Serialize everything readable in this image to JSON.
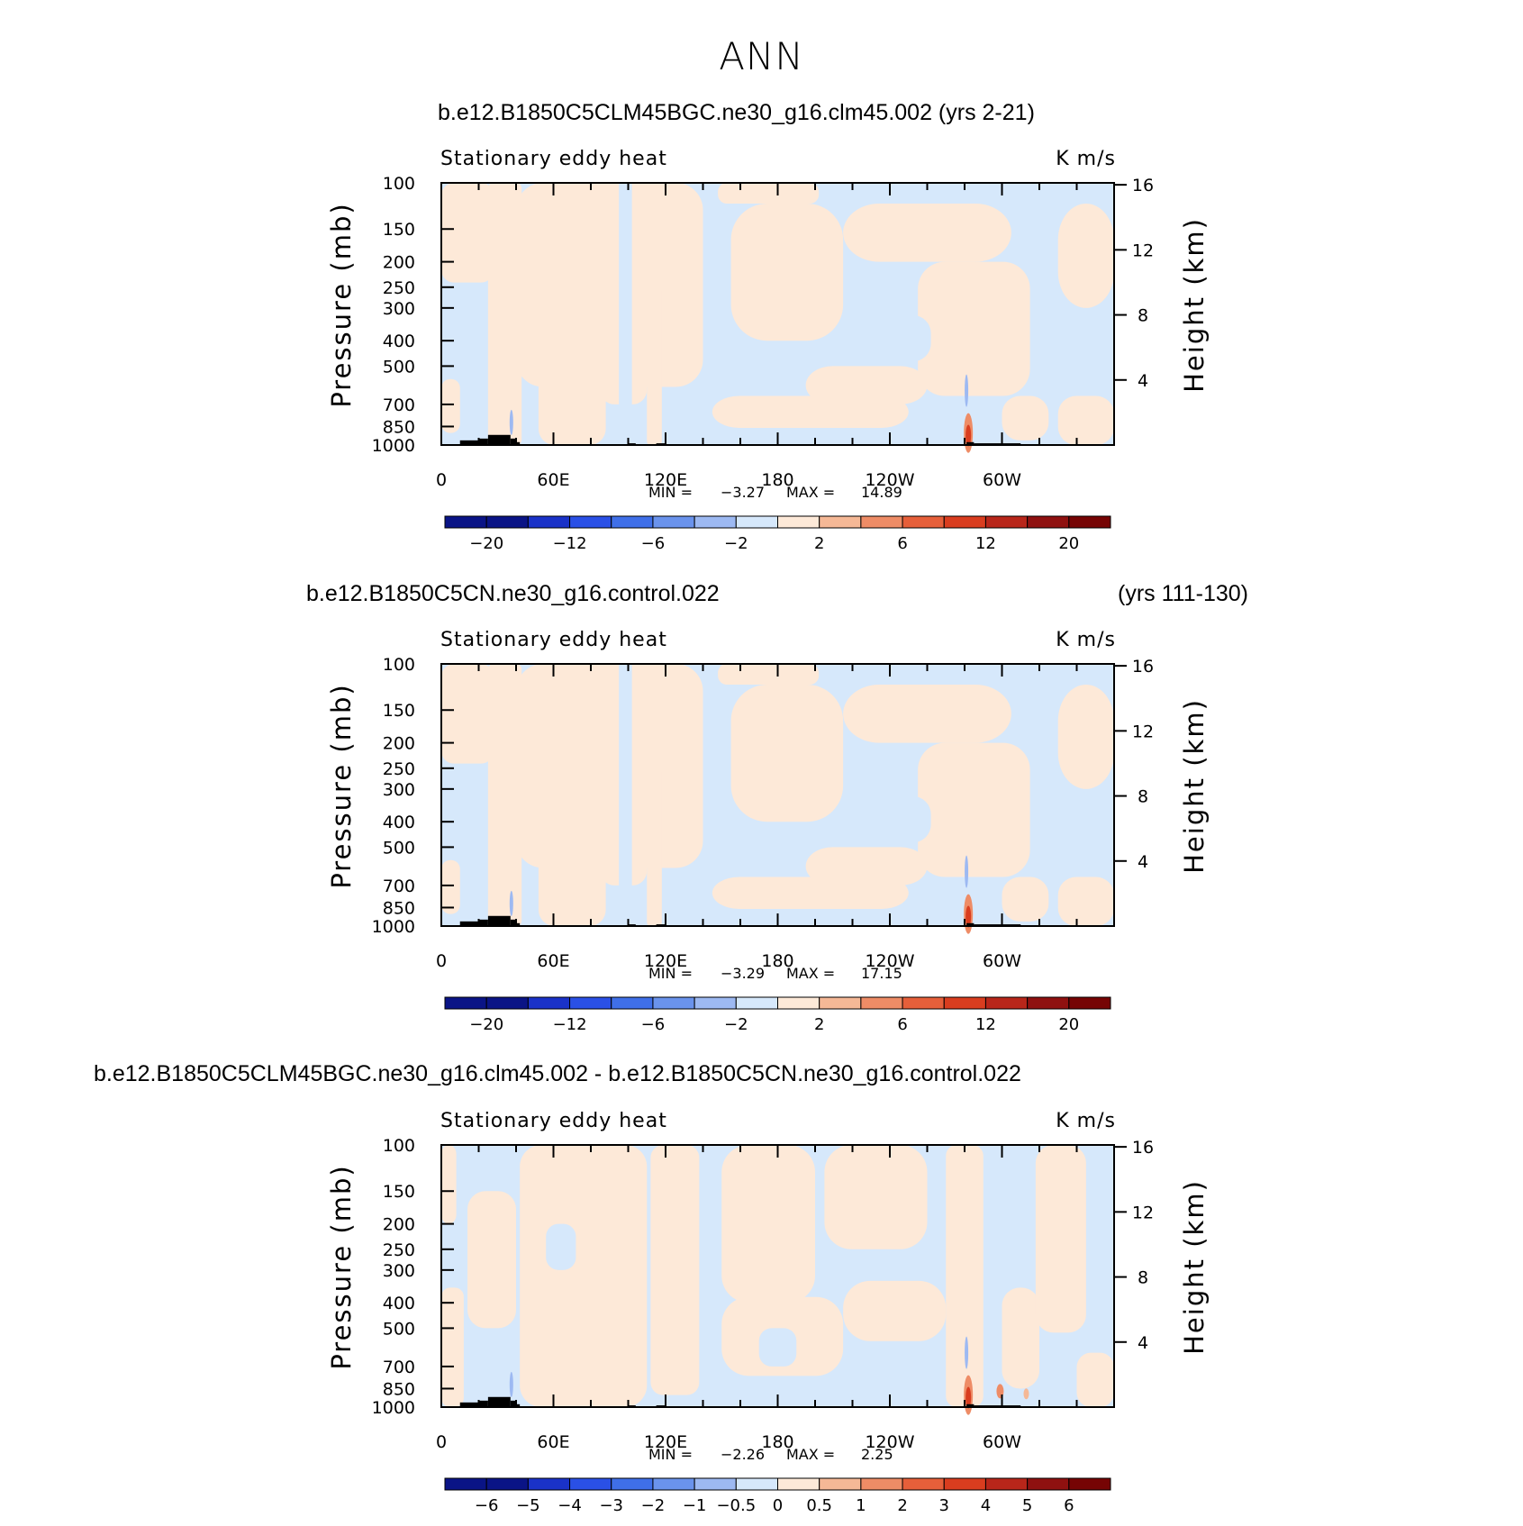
{
  "page": {
    "title": "ANN"
  },
  "colors": {
    "neg_light": "#d6e8fb",
    "pos_light": "#fde9d8",
    "topography": "#000000",
    "colorbar": [
      "#0a1486",
      "#1a32c8",
      "#2a50e6",
      "#3f6fe8",
      "#6a93ec",
      "#9db9f2",
      "#d6e8fb",
      "#fde9d8",
      "#f5b896",
      "#ee8c66",
      "#e65f3a",
      "#d93d1f",
      "#b8261a",
      "#8f1110",
      "#760404"
    ]
  },
  "panels": [
    {
      "title": "b.e12.B1850C5CLM45BGC.ne30_g16.clm45.002 (yrs 2-21)",
      "years": "",
      "left_label": "Stationary eddy heat",
      "right_label": "K m/s",
      "ylabel_left": "Pressure (mb)",
      "ylabel_right": "Height (km)",
      "min_label": "MIN =",
      "min_value": "-3.27",
      "max_label": "MAX =",
      "max_value": "14.89",
      "colorbar_labels": [
        "−20",
        "−12",
        "−6",
        "−2",
        "2",
        "6",
        "12",
        "20"
      ]
    },
    {
      "title": "b.e12.B1850C5CN.ne30_g16.control.022",
      "years": "(yrs 111-130)",
      "left_label": "Stationary eddy heat",
      "right_label": "K m/s",
      "ylabel_left": "Pressure (mb)",
      "ylabel_right": "Height (km)",
      "min_label": "MIN =",
      "min_value": "-3.29",
      "max_label": "MAX =",
      "max_value": "17.15",
      "colorbar_labels": [
        "−20",
        "−12",
        "−6",
        "−2",
        "2",
        "6",
        "12",
        "20"
      ]
    },
    {
      "title": "b.e12.B1850C5CLM45BGC.ne30_g16.clm45.002 - b.e12.B1850C5CN.ne30_g16.control.022",
      "years": "",
      "left_label": "Stationary eddy heat",
      "right_label": "K m/s",
      "ylabel_left": "Pressure (mb)",
      "ylabel_right": "Height (km)",
      "min_label": "MIN =",
      "min_value": "-2.26",
      "max_label": "MAX =",
      "max_value": "2.25",
      "colorbar_labels": [
        "−6",
        "−5",
        "−4",
        "−3",
        "−2",
        "−1",
        "−0.5",
        "0",
        "0.5",
        "1",
        "2",
        "3",
        "4",
        "5",
        "6"
      ]
    }
  ],
  "chart_data": [
    {
      "type": "heatmap",
      "title": "b.e12.B1850C5CLM45BGC.ne30_g16.clm45.002 (yrs 2-21)",
      "variable": "Stationary eddy heat",
      "units": "K m/s",
      "xlabel": "",
      "ylabel": "Pressure (mb)",
      "ylabel_right": "Height (km)",
      "x_ticks": [
        "0",
        "60E",
        "120E",
        "180",
        "120W",
        "60W"
      ],
      "x_range": [
        0,
        360
      ],
      "y_ticks": [
        100,
        150,
        200,
        250,
        300,
        400,
        500,
        700,
        850,
        1000
      ],
      "y_scale": "log",
      "y_range": [
        1000,
        100
      ],
      "y_right_ticks": [
        4,
        8,
        12,
        16
      ],
      "contour_levels": [
        -20,
        -16,
        -12,
        -8,
        -6,
        -4,
        -2,
        0,
        2,
        4,
        6,
        8,
        12,
        16,
        20
      ],
      "colorbar_tick_labels": [
        "−20",
        "−12",
        "−6",
        "−2",
        "2",
        "6",
        "12",
        "20"
      ],
      "min": -3.27,
      "max": 14.89
    },
    {
      "type": "heatmap",
      "title": "b.e12.B1850C5CN.ne30_g16.control.022 (yrs 111-130)",
      "variable": "Stationary eddy heat",
      "units": "K m/s",
      "xlabel": "",
      "ylabel": "Pressure (mb)",
      "ylabel_right": "Height (km)",
      "x_ticks": [
        "0",
        "60E",
        "120E",
        "180",
        "120W",
        "60W"
      ],
      "x_range": [
        0,
        360
      ],
      "y_ticks": [
        100,
        150,
        200,
        250,
        300,
        400,
        500,
        700,
        850,
        1000
      ],
      "y_scale": "log",
      "y_range": [
        1000,
        100
      ],
      "y_right_ticks": [
        4,
        8,
        12,
        16
      ],
      "contour_levels": [
        -20,
        -16,
        -12,
        -8,
        -6,
        -4,
        -2,
        0,
        2,
        4,
        6,
        8,
        12,
        16,
        20
      ],
      "colorbar_tick_labels": [
        "−20",
        "−12",
        "−6",
        "−2",
        "2",
        "6",
        "12",
        "20"
      ],
      "min": -3.29,
      "max": 17.15
    },
    {
      "type": "heatmap",
      "title": "b.e12.B1850C5CLM45BGC.ne30_g16.clm45.002 - b.e12.B1850C5CN.ne30_g16.control.022",
      "variable": "Stationary eddy heat",
      "units": "K m/s",
      "xlabel": "",
      "ylabel": "Pressure (mb)",
      "ylabel_right": "Height (km)",
      "x_ticks": [
        "0",
        "60E",
        "120E",
        "180",
        "120W",
        "60W"
      ],
      "x_range": [
        0,
        360
      ],
      "y_ticks": [
        100,
        150,
        200,
        250,
        300,
        400,
        500,
        700,
        850,
        1000
      ],
      "y_scale": "log",
      "y_range": [
        1000,
        100
      ],
      "y_right_ticks": [
        4,
        8,
        12,
        16
      ],
      "contour_levels": [
        -6,
        -5,
        -4,
        -3,
        -2,
        -1,
        -0.5,
        0,
        0.5,
        1,
        2,
        3,
        4,
        5,
        6
      ],
      "colorbar_tick_labels": [
        "−6",
        "−5",
        "−4",
        "−3",
        "−2",
        "−1",
        "−0.5",
        "0",
        "0.5",
        "1",
        "2",
        "3",
        "4",
        "5",
        "6"
      ],
      "min": -2.26,
      "max": 2.25
    }
  ]
}
